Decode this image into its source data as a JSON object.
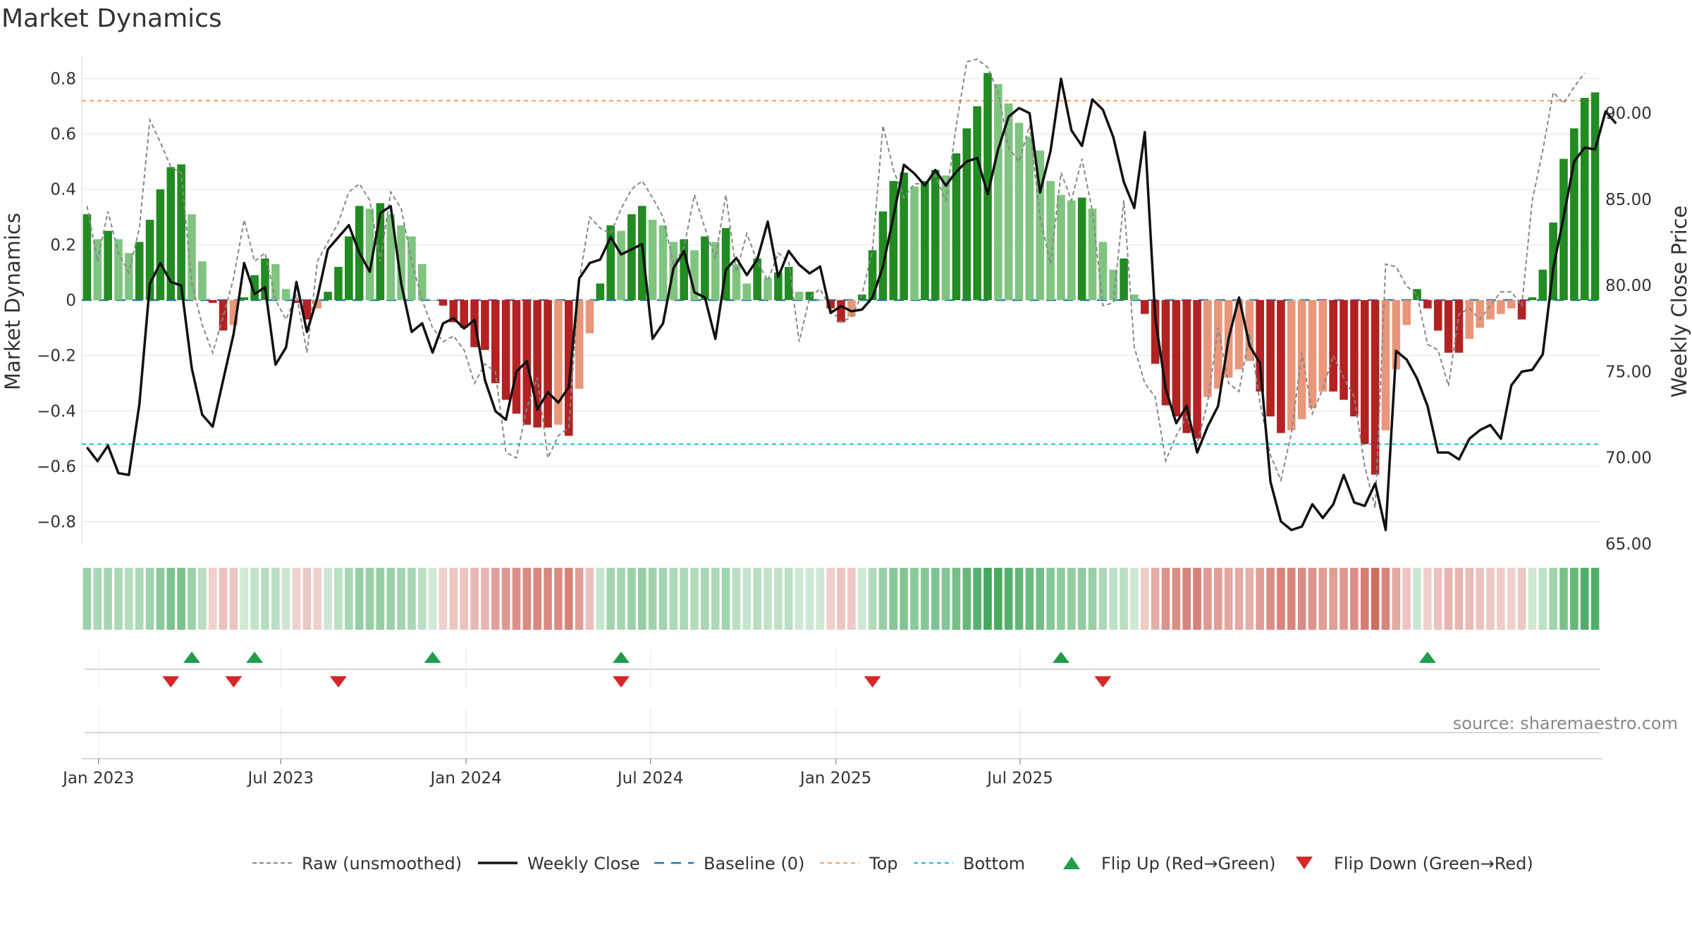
{
  "chart_data": {
    "type": "bar",
    "title": "Market Dynamics",
    "source": "source: sharemaestro.com",
    "ylabel": "Market Dynamics",
    "y2label": "Weekly Close Price",
    "ylim": [
      -0.88,
      0.88
    ],
    "y2lim": [
      65.0,
      93.3
    ],
    "yticks": [
      "0.8",
      "0.6",
      "0.4",
      "0.2",
      "0",
      "−0.2",
      "−0.4",
      "−0.6",
      "−0.8"
    ],
    "yticks_values": [
      0.8,
      0.6,
      0.4,
      0.2,
      0,
      -0.2,
      -0.4,
      -0.6,
      -0.8
    ],
    "y2ticks": [
      "90.00",
      "85.00",
      "80.00",
      "75.00",
      "70.00",
      "65.00"
    ],
    "y2ticks_values": [
      90,
      85,
      80,
      75,
      70,
      65
    ],
    "xticks": [
      "Jan 2023",
      "Jul 2023",
      "Jan 2024",
      "Jul 2024",
      "Jan 2025",
      "Jul 2025"
    ],
    "xticks_index": [
      1.1,
      18.5,
      36.2,
      53.8,
      71.5,
      89.1
    ],
    "top_line": 0.72,
    "bottom_line": -0.52,
    "colors": {
      "strong_green": "#228b22",
      "light_green": "#7fc47f",
      "strong_red": "#b22222",
      "light_red": "#e9967a",
      "close": "#111111",
      "raw": "#888888",
      "baseline": "#1f77b4",
      "top": "#f4a460",
      "bottom": "#17becf",
      "flip_up": "#1e9e4a",
      "flip_down": "#d62728"
    },
    "bars": [
      0.31,
      0.22,
      0.25,
      0.22,
      0.17,
      0.21,
      0.29,
      0.4,
      0.48,
      0.49,
      0.31,
      0.14,
      -0.01,
      -0.11,
      -0.09,
      0.01,
      0.09,
      0.15,
      0.13,
      0.04,
      -0.01,
      -0.07,
      -0.03,
      0.03,
      0.12,
      0.23,
      0.34,
      0.33,
      0.35,
      0.31,
      0.27,
      0.23,
      0.13,
      0.0,
      -0.02,
      -0.08,
      -0.1,
      -0.17,
      -0.18,
      -0.3,
      -0.36,
      -0.41,
      -0.45,
      -0.46,
      -0.46,
      -0.45,
      -0.49,
      -0.32,
      -0.12,
      0.06,
      0.27,
      0.25,
      0.31,
      0.34,
      0.29,
      0.27,
      0.21,
      0.22,
      0.18,
      0.23,
      0.21,
      0.26,
      0.13,
      0.06,
      0.15,
      0.08,
      0.1,
      0.12,
      0.03,
      0.03,
      0.0,
      -0.03,
      -0.08,
      -0.06,
      0.02,
      0.18,
      0.32,
      0.43,
      0.46,
      0.41,
      0.43,
      0.47,
      0.45,
      0.53,
      0.62,
      0.7,
      0.82,
      0.78,
      0.71,
      0.64,
      0.59,
      0.54,
      0.43,
      0.38,
      0.36,
      0.37,
      0.33,
      0.21,
      0.11,
      0.15,
      0.02,
      -0.05,
      -0.23,
      -0.38,
      -0.42,
      -0.48,
      -0.5,
      -0.35,
      -0.32,
      -0.28,
      -0.25,
      -0.22,
      -0.33,
      -0.42,
      -0.48,
      -0.47,
      -0.43,
      -0.39,
      -0.33,
      -0.33,
      -0.36,
      -0.42,
      -0.52,
      -0.63,
      -0.47,
      -0.25,
      -0.09,
      0.04,
      -0.03,
      -0.11,
      -0.19,
      -0.19,
      -0.14,
      -0.1,
      -0.07,
      -0.05,
      -0.03,
      -0.07,
      0.01,
      0.11,
      0.28,
      0.51,
      0.62,
      0.73,
      0.75
    ],
    "raw": [
      0.34,
      0.14,
      0.32,
      0.17,
      0.1,
      0.26,
      0.65,
      0.57,
      0.48,
      0.46,
      0.06,
      -0.09,
      -0.19,
      -0.06,
      0.08,
      0.29,
      0.14,
      0.17,
      0.0,
      -0.07,
      0.02,
      -0.19,
      0.14,
      0.21,
      0.28,
      0.39,
      0.42,
      0.36,
      0.14,
      0.39,
      0.33,
      0.14,
      0.0,
      -0.1,
      -0.15,
      -0.13,
      -0.18,
      -0.3,
      -0.23,
      -0.26,
      -0.55,
      -0.57,
      -0.39,
      -0.28,
      -0.57,
      -0.49,
      -0.46,
      0.07,
      0.3,
      0.26,
      0.24,
      0.33,
      0.4,
      0.43,
      0.37,
      0.3,
      0.13,
      0.19,
      0.38,
      0.26,
      0.15,
      0.38,
      0.1,
      0.24,
      0.14,
      0.07,
      0.17,
      0.14,
      -0.15,
      0.01,
      0.04,
      -0.03,
      -0.08,
      -0.06,
      0.02,
      0.18,
      0.63,
      0.47,
      0.37,
      0.42,
      0.42,
      0.45,
      0.36,
      0.63,
      0.86,
      0.87,
      0.84,
      0.75,
      0.55,
      0.5,
      0.63,
      0.3,
      0.13,
      0.46,
      0.36,
      0.51,
      0.32,
      -0.02,
      -0.01,
      0.36,
      -0.17,
      -0.3,
      -0.35,
      -0.58,
      -0.49,
      -0.42,
      -0.52,
      -0.37,
      -0.1,
      -0.3,
      -0.33,
      -0.12,
      -0.37,
      -0.56,
      -0.65,
      -0.48,
      -0.19,
      -0.41,
      -0.32,
      -0.2,
      -0.28,
      -0.35,
      -0.6,
      -0.75,
      0.13,
      0.12,
      0.05,
      0.02,
      -0.16,
      -0.18,
      -0.31,
      -0.05,
      -0.03,
      -0.07,
      -0.02,
      0.03,
      0.03,
      -0.02,
      0.36,
      0.54,
      0.75,
      0.71,
      0.77,
      0.82
    ],
    "close": [
      70.6,
      69.8,
      70.7,
      69.1,
      69.0,
      73.1,
      80.1,
      81.3,
      80.2,
      80.0,
      75.2,
      72.5,
      71.8,
      74.5,
      77.2,
      81.3,
      79.5,
      79.9,
      75.4,
      76.4,
      80.2,
      77.3,
      79.3,
      82.1,
      82.8,
      83.5,
      81.9,
      80.8,
      84.2,
      84.6,
      80.1,
      77.3,
      77.8,
      76.1,
      77.8,
      78.1,
      77.5,
      78.0,
      74.5,
      72.7,
      72.2,
      75.0,
      75.6,
      72.8,
      73.8,
      73.2,
      74.1,
      80.4,
      81.3,
      81.5,
      82.8,
      81.8,
      82.1,
      82.4,
      76.9,
      77.8,
      81.0,
      82.0,
      79.6,
      79.3,
      76.9,
      80.9,
      81.6,
      80.6,
      81.5,
      83.7,
      80.5,
      82.0,
      81.2,
      80.7,
      81.1,
      78.4,
      78.8,
      78.5,
      78.6,
      79.3,
      81.1,
      84.0,
      87.0,
      86.5,
      85.8,
      86.7,
      85.8,
      86.6,
      87.2,
      87.4,
      85.3,
      87.9,
      89.8,
      90.3,
      90.0,
      85.4,
      87.8,
      92.0,
      89.0,
      88.1,
      90.8,
      90.2,
      88.6,
      86.0,
      84.5,
      88.9,
      78.1,
      74.0,
      72.0,
      73.0,
      70.3,
      71.8,
      73.0,
      76.9,
      79.3,
      76.5,
      75.5,
      68.6,
      66.3,
      65.8,
      66.0,
      67.3,
      66.5,
      67.3,
      69.0,
      67.4,
      67.2,
      68.5,
      65.8,
      76.2,
      75.7,
      74.6,
      73.0,
      70.3,
      70.3,
      69.9,
      71.1,
      71.6,
      71.9,
      71.1,
      74.2,
      75.0,
      75.1,
      76.0,
      81.0,
      84.0,
      87.2,
      88.0,
      87.9,
      90.1,
      89.4
    ],
    "flip_up_index": [
      10,
      16,
      33,
      51,
      93,
      128
    ],
    "flip_down_index": [
      8,
      14,
      24,
      51,
      75,
      97
    ],
    "legend": [
      {
        "key": "raw",
        "label": "Raw (unsmoothed)"
      },
      {
        "key": "close",
        "label": "Weekly Close"
      },
      {
        "key": "baseline",
        "label": "Baseline (0)"
      },
      {
        "key": "top",
        "label": "Top"
      },
      {
        "key": "bottom",
        "label": "Bottom"
      },
      {
        "key": "flip_up",
        "label": "Flip Up (Red→Green)"
      },
      {
        "key": "flip_down",
        "label": "Flip Down (Green→Red)"
      }
    ]
  }
}
